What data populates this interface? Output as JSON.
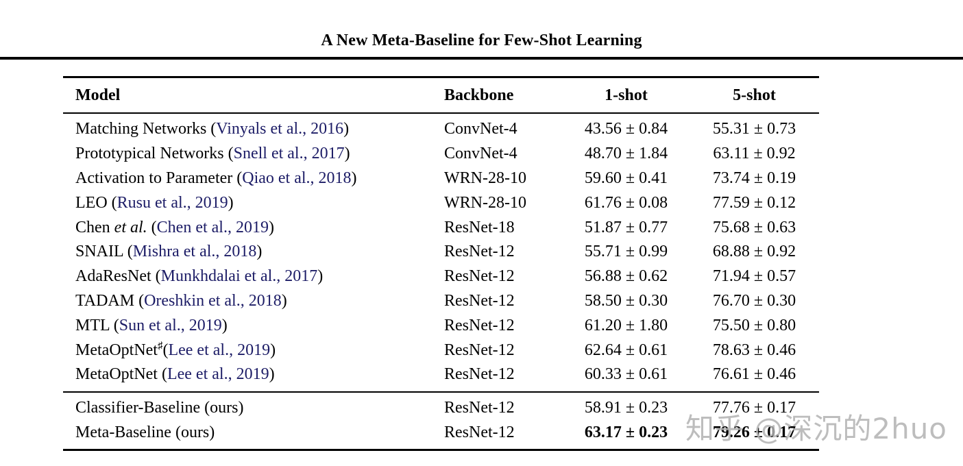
{
  "page": {
    "title": "A New Meta-Baseline for Few-Shot Learning"
  },
  "colors": {
    "citation": "#1c1c66",
    "text": "#000000",
    "rule": "#000000",
    "watermark": "#b2b2b2"
  },
  "watermark": {
    "text": "知乎 @深沉的2huo"
  },
  "table": {
    "headers": {
      "model": "Model",
      "backbone": "Backbone",
      "one_shot": "1-shot",
      "five_shot": "5-shot"
    },
    "groups": [
      {
        "rows": [
          {
            "model": [
              {
                "t": "Matching Networks (",
                "s": "p"
              },
              {
                "t": "Vinyals et al., 2016",
                "s": "c"
              },
              {
                "t": ")",
                "s": "p"
              }
            ],
            "backbone": "ConvNet-4",
            "one_shot": "43.56 ± 0.84",
            "five_shot": "55.31 ± 0.73",
            "one_bold": false,
            "five_bold": false
          },
          {
            "model": [
              {
                "t": "Prototypical Networks (",
                "s": "p"
              },
              {
                "t": "Snell et al., 2017",
                "s": "c"
              },
              {
                "t": ")",
                "s": "p"
              }
            ],
            "backbone": "ConvNet-4",
            "one_shot": "48.70 ± 1.84",
            "five_shot": "63.11 ± 0.92",
            "one_bold": false,
            "five_bold": false
          },
          {
            "model": [
              {
                "t": "Activation to Parameter (",
                "s": "p"
              },
              {
                "t": "Qiao et al., 2018",
                "s": "c"
              },
              {
                "t": ")",
                "s": "p"
              }
            ],
            "backbone": "WRN-28-10",
            "one_shot": "59.60 ± 0.41",
            "five_shot": "73.74 ± 0.19",
            "one_bold": false,
            "five_bold": false
          },
          {
            "model": [
              {
                "t": "LEO (",
                "s": "p"
              },
              {
                "t": "Rusu et al., 2019",
                "s": "c"
              },
              {
                "t": ")",
                "s": "p"
              }
            ],
            "backbone": "WRN-28-10",
            "one_shot": "61.76 ± 0.08",
            "five_shot": "77.59 ± 0.12",
            "one_bold": false,
            "five_bold": false
          },
          {
            "model": [
              {
                "t": "Chen ",
                "s": "p"
              },
              {
                "t": "et al.",
                "s": "i"
              },
              {
                "t": " (",
                "s": "p"
              },
              {
                "t": "Chen et al., 2019",
                "s": "c"
              },
              {
                "t": ")",
                "s": "p"
              }
            ],
            "backbone": "ResNet-18",
            "one_shot": "51.87 ± 0.77",
            "five_shot": "75.68 ± 0.63",
            "one_bold": false,
            "five_bold": false
          },
          {
            "model": [
              {
                "t": "SNAIL (",
                "s": "p"
              },
              {
                "t": "Mishra et al., 2018",
                "s": "c"
              },
              {
                "t": ")",
                "s": "p"
              }
            ],
            "backbone": "ResNet-12",
            "one_shot": "55.71 ± 0.99",
            "five_shot": "68.88 ± 0.92",
            "one_bold": false,
            "five_bold": false
          },
          {
            "model": [
              {
                "t": "AdaResNet (",
                "s": "p"
              },
              {
                "t": "Munkhdalai et al., 2017",
                "s": "c"
              },
              {
                "t": ")",
                "s": "p"
              }
            ],
            "backbone": "ResNet-12",
            "one_shot": "56.88 ± 0.62",
            "five_shot": "71.94 ± 0.57",
            "one_bold": false,
            "five_bold": false
          },
          {
            "model": [
              {
                "t": "TADAM (",
                "s": "p"
              },
              {
                "t": "Oreshkin et al., 2018",
                "s": "c"
              },
              {
                "t": ")",
                "s": "p"
              }
            ],
            "backbone": "ResNet-12",
            "one_shot": "58.50 ± 0.30",
            "five_shot": "76.70 ± 0.30",
            "one_bold": false,
            "five_bold": false
          },
          {
            "model": [
              {
                "t": "MTL (",
                "s": "p"
              },
              {
                "t": "Sun et al., 2019",
                "s": "c"
              },
              {
                "t": ")",
                "s": "p"
              }
            ],
            "backbone": "ResNet-12",
            "one_shot": "61.20 ± 1.80",
            "five_shot": "75.50 ± 0.80",
            "one_bold": false,
            "five_bold": false
          },
          {
            "model": [
              {
                "t": "MetaOptNet",
                "s": "p"
              },
              {
                "t": "♯",
                "s": "s"
              },
              {
                "t": "(",
                "s": "p"
              },
              {
                "t": "Lee et al., 2019",
                "s": "c"
              },
              {
                "t": ")",
                "s": "p"
              }
            ],
            "backbone": "ResNet-12",
            "one_shot": "62.64 ± 0.61",
            "five_shot": "78.63 ± 0.46",
            "one_bold": false,
            "five_bold": false
          },
          {
            "model": [
              {
                "t": "MetaOptNet (",
                "s": "p"
              },
              {
                "t": "Lee et al., 2019",
                "s": "c"
              },
              {
                "t": ")",
                "s": "p"
              }
            ],
            "backbone": "ResNet-12",
            "one_shot": "60.33 ± 0.61",
            "five_shot": "76.61 ± 0.46",
            "one_bold": false,
            "five_bold": false
          }
        ]
      },
      {
        "rows": [
          {
            "model": [
              {
                "t": "Classifier-Baseline (ours)",
                "s": "p"
              }
            ],
            "backbone": "ResNet-12",
            "one_shot": "58.91 ± 0.23",
            "five_shot": "77.76 ± 0.17",
            "one_bold": false,
            "five_bold": false
          },
          {
            "model": [
              {
                "t": "Meta-Baseline (ours)",
                "s": "p"
              }
            ],
            "backbone": "ResNet-12",
            "one_shot": "63.17 ± 0.23",
            "five_shot": "79.26 ± 0.17",
            "one_bold": true,
            "five_bold": true
          }
        ]
      }
    ]
  }
}
